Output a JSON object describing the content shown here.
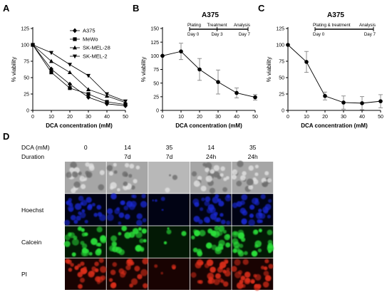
{
  "chart_data": [
    {
      "panel_label": "A",
      "type": "line",
      "title": "",
      "xlabel": "DCA concentration (mM)",
      "ylabel": "% viability",
      "x": [
        0,
        10,
        20,
        30,
        40,
        50
      ],
      "xlim": [
        0,
        50
      ],
      "ylim": [
        0,
        125
      ],
      "x_ticks": [
        "0",
        "10",
        "20",
        "30",
        "40",
        "50"
      ],
      "y_ticks": [
        "0",
        "25",
        "50",
        "75",
        "100",
        "125"
      ],
      "legend": "top-right",
      "series": [
        {
          "name": "A375",
          "marker": "diamond",
          "values": [
            100,
            63,
            40,
            20,
            10,
            7
          ]
        },
        {
          "name": "MeWo",
          "marker": "square",
          "values": [
            100,
            58,
            34,
            25,
            13,
            9
          ]
        },
        {
          "name": "SK-MEL-28",
          "marker": "triangle-up",
          "values": [
            100,
            75,
            58,
            32,
            22,
            12
          ]
        },
        {
          "name": "SK-MEL-2",
          "marker": "triangle-down",
          "values": [
            100,
            88,
            70,
            53,
            25,
            14
          ]
        }
      ]
    },
    {
      "panel_label": "B",
      "type": "line",
      "title": "A375",
      "xlabel": "DCA concentration (mM)",
      "ylabel": "% viability",
      "x": [
        0,
        10,
        20,
        30,
        40,
        50
      ],
      "xlim": [
        0,
        50
      ],
      "ylim": [
        0,
        150
      ],
      "x_ticks": [
        "0",
        "10",
        "20",
        "30",
        "40",
        "50"
      ],
      "y_ticks": [
        "0",
        "25",
        "50",
        "75",
        "100",
        "125",
        "150"
      ],
      "values": [
        100,
        108,
        75,
        52,
        32,
        24
      ],
      "errors": [
        0,
        15,
        20,
        22,
        9,
        5
      ],
      "timeline": {
        "labels_top": [
          "Plating",
          "Treatment",
          "Analysis"
        ],
        "labels_bottom": [
          "Day 0",
          "Day 3",
          "Day 7"
        ]
      }
    },
    {
      "panel_label": "C",
      "type": "line",
      "title": "A375",
      "xlabel": "DCA concentration (mM)",
      "ylabel": "% viability",
      "x": [
        0,
        10,
        20,
        30,
        40,
        50
      ],
      "xlim": [
        0,
        50
      ],
      "ylim": [
        0,
        125
      ],
      "x_ticks": [
        "0",
        "10",
        "20",
        "30",
        "40",
        "50"
      ],
      "y_ticks": [
        "0",
        "25",
        "50",
        "75",
        "100",
        "125"
      ],
      "values": [
        100,
        74,
        22,
        12,
        11,
        14
      ],
      "errors": [
        0,
        16,
        6,
        10,
        10,
        10
      ],
      "timeline": {
        "labels_top": [
          "Plating & treatment",
          "Analysis"
        ],
        "labels_bottom": [
          "Day 0",
          "Day 7"
        ]
      }
    }
  ],
  "microscopy": {
    "panel_label": "D",
    "header_row_label_1": "DCA (mM)",
    "header_row_label_2": "Duration",
    "columns": [
      {
        "dca": "0",
        "duration": ""
      },
      {
        "dca": "14",
        "duration": "7d"
      },
      {
        "dca": "35",
        "duration": "7d"
      },
      {
        "dca": "14",
        "duration": "24h"
      },
      {
        "dca": "35",
        "duration": "24h"
      }
    ],
    "rows": [
      {
        "label": "",
        "color": "#9a9a9a"
      },
      {
        "label": "Hoechst",
        "color": "#0b16a8"
      },
      {
        "label": "Calcein",
        "color": "#1bd12a"
      },
      {
        "label": "PI",
        "color": "#d11a12"
      }
    ]
  }
}
